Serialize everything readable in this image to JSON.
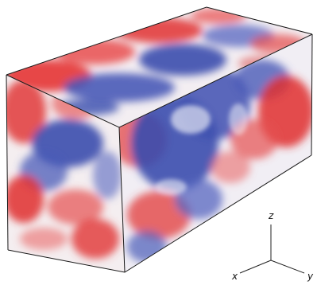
{
  "axes": {
    "z_label": "z",
    "x_label": "x",
    "y_label": "y"
  },
  "colors": {
    "positive": "#e03030",
    "negative": "#3a4dae",
    "neutral": "#ffffff",
    "edge": "#1a1a1a"
  }
}
